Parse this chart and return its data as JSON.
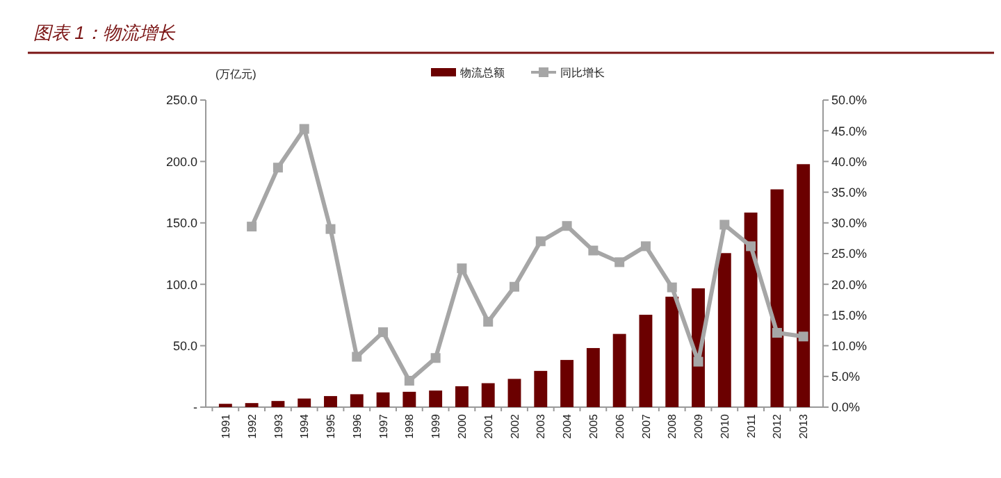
{
  "chart_data": {
    "type": "bar",
    "title": "图表 1：物流增长",
    "ylabel": "(万亿元)",
    "categories": [
      "1991",
      "1992",
      "1993",
      "1994",
      "1995",
      "1996",
      "1997",
      "1998",
      "1999",
      "2000",
      "2001",
      "2002",
      "2003",
      "2004",
      "2005",
      "2006",
      "2007",
      "2008",
      "2009",
      "2010",
      "2011",
      "2012",
      "2013"
    ],
    "series": [
      {
        "name": "物流总额",
        "color": "#6b0000",
        "values": [
          2.7,
          3.3,
          5,
          7,
          9,
          10.5,
          12,
          12.5,
          13.5,
          17,
          19.5,
          23,
          29.5,
          38.4,
          48.1,
          59.6,
          75.2,
          89.9,
          96.7,
          125.4,
          158.4,
          177.3,
          197.8
        ]
      },
      {
        "name": "同比增长",
        "type": "line",
        "axis": "y2",
        "color": "#a6a6a6",
        "marker": "square",
        "values": [
          null,
          29.4,
          39,
          45.3,
          29,
          8.2,
          12.2,
          4.3,
          8,
          22.6,
          13.9,
          19.6,
          27,
          29.5,
          25.5,
          23.6,
          26.2,
          19.5,
          7.4,
          29.7,
          26.2,
          12.1,
          11.5
        ]
      }
    ],
    "ylim": [
      0,
      250
    ],
    "yticks": [
      {
        "value": 0,
        "label": "-"
      },
      {
        "value": 50,
        "label": "50.0"
      },
      {
        "value": 100,
        "label": "100.0"
      },
      {
        "value": 150,
        "label": "150.0"
      },
      {
        "value": 200,
        "label": "200.0"
      },
      {
        "value": 250,
        "label": "250.0"
      }
    ],
    "y2lim": [
      0,
      50
    ],
    "y2ticks": [
      {
        "value": 0,
        "label": "0.0%"
      },
      {
        "value": 5,
        "label": "5.0%"
      },
      {
        "value": 10,
        "label": "10.0%"
      },
      {
        "value": 15,
        "label": "15.0%"
      },
      {
        "value": 20,
        "label": "20.0%"
      },
      {
        "value": 25,
        "label": "25.0%"
      },
      {
        "value": 30,
        "label": "30.0%"
      },
      {
        "value": 35,
        "label": "35.0%"
      },
      {
        "value": 40,
        "label": "40.0%"
      },
      {
        "value": 45,
        "label": "45.0%"
      },
      {
        "value": 50,
        "label": "50.0%"
      }
    ],
    "legend": "top",
    "grid": false
  }
}
